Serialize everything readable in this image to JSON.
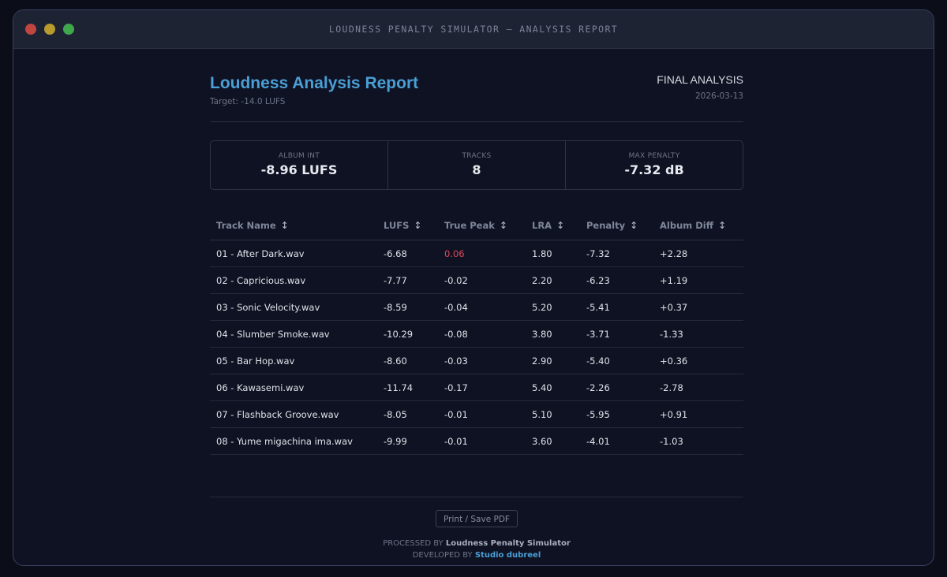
{
  "window": {
    "title": "LOUDNESS PENALTY SIMULATOR — ANALYSIS REPORT"
  },
  "report": {
    "title": "Loudness Analysis Report",
    "target": "Target: -14.0 LUFS",
    "status": "FINAL ANALYSIS",
    "date": "2026-03-13"
  },
  "stats": [
    {
      "label": "ALBUM INT",
      "value": "-8.96 LUFS"
    },
    {
      "label": "TRACKS",
      "value": "8"
    },
    {
      "label": "MAX PENALTY",
      "value": "-7.32 dB"
    }
  ],
  "table": {
    "columns": [
      "Track Name",
      "LUFS",
      "True Peak",
      "LRA",
      "Penalty",
      "Album Diff"
    ],
    "rows": [
      [
        "01 - After Dark.wav",
        "-6.68",
        "0.06",
        "1.80",
        "-7.32",
        "+2.28"
      ],
      [
        "02 - Capricious.wav",
        "-7.77",
        "-0.02",
        "2.20",
        "-6.23",
        "+1.19"
      ],
      [
        "03 - Sonic Velocity.wav",
        "-8.59",
        "-0.04",
        "5.20",
        "-5.41",
        "+0.37"
      ],
      [
        "04 - Slumber Smoke.wav",
        "-10.29",
        "-0.08",
        "3.80",
        "-3.71",
        "-1.33"
      ],
      [
        "05 - Bar Hop.wav",
        "-8.60",
        "-0.03",
        "2.90",
        "-5.40",
        "+0.36"
      ],
      [
        "06 - Kawasemi.wav",
        "-11.74",
        "-0.17",
        "5.40",
        "-2.26",
        "-2.78"
      ],
      [
        "07 - Flashback Groove.wav",
        "-8.05",
        "-0.01",
        "5.10",
        "-5.95",
        "+0.91"
      ],
      [
        "08 - Yume migachina ima.wav",
        "-9.99",
        "-0.01",
        "3.60",
        "-4.01",
        "-1.03"
      ]
    ]
  },
  "footer": {
    "print_label": "Print / Save PDF",
    "processed_prefix": "PROCESSED BY",
    "processed_name": "Loudness Penalty Simulator",
    "developed_prefix": "DEVELOPED BY",
    "developed_name": "Studio dubreel"
  },
  "icons": {
    "sort": "sort-updown-icon"
  },
  "colors": {
    "accent": "#4a9fd6",
    "peak_over": "#e0475a",
    "traffic_red": "#c0463f",
    "traffic_yellow": "#b99a2c",
    "traffic_green": "#3fa84c"
  }
}
